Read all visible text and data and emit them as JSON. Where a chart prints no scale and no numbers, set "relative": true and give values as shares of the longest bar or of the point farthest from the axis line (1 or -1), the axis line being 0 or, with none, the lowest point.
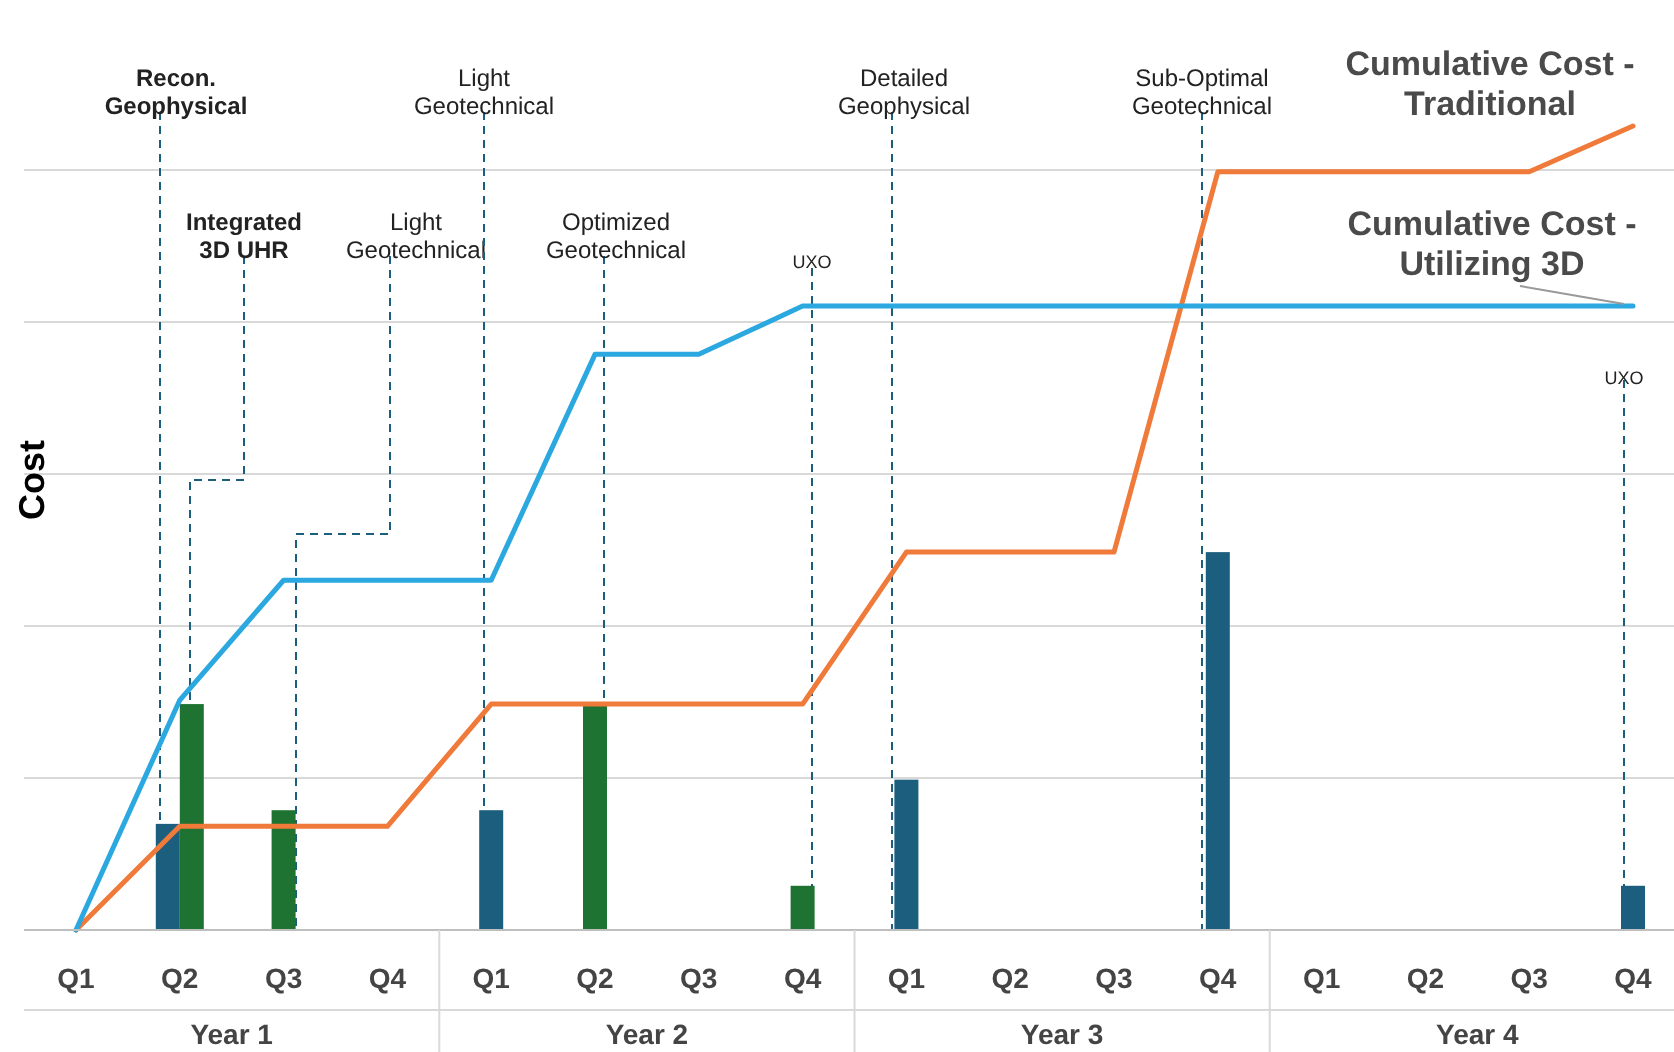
{
  "chart_data": {
    "type": "bar",
    "relative": true,
    "ylabel": "Cost",
    "grid": true,
    "categories": [
      "Q1",
      "Q2",
      "Q3",
      "Q4",
      "Q1",
      "Q2",
      "Q3",
      "Q4",
      "Q1",
      "Q2",
      "Q3",
      "Q4",
      "Q1",
      "Q2",
      "Q3",
      "Q4"
    ],
    "series": [
      {
        "type": "bar",
        "color": "#1b5e7e",
        "values": [
          null,
          0.132,
          null,
          null,
          0.149,
          null,
          null,
          null,
          0.187,
          null,
          null,
          0.47,
          null,
          null,
          null,
          0.055
        ]
      },
      {
        "type": "bar",
        "color": "#1e7332",
        "values": [
          null,
          0.281,
          0.149,
          null,
          null,
          0.281,
          null,
          0.055,
          null,
          null,
          null,
          null,
          null,
          null,
          null,
          null
        ]
      },
      {
        "type": "line",
        "name": "Cumulative Cost - Traditional",
        "color": "#f07a3a",
        "values": [
          0,
          0.129,
          0.129,
          0.129,
          0.281,
          0.281,
          0.281,
          0.281,
          0.47,
          0.47,
          0.47,
          0.943,
          0.943,
          0.943,
          0.943,
          1
        ]
      },
      {
        "type": "line",
        "name": "Cumulative Cost - Utilizing 3D",
        "color": "#2aa8df",
        "values": [
          0,
          0.286,
          0.435,
          0.435,
          0.435,
          0.716,
          0.716,
          0.776,
          0.776,
          0.776,
          0.776,
          0.776,
          0.776,
          0.776,
          0.776,
          0.776
        ]
      }
    ],
    "annotations": [
      "Recon.\nGeophysical",
      "Integrated\n3D UHR",
      "Light\nGeotechnical",
      "Light\nGeotechnical",
      "Optimized\nGeotechnical",
      "UXO",
      "Detailed\nGeophysical",
      "Sub-Optimal\nGeotechnical",
      "UXO",
      "Year 1",
      "Year 2",
      "Year 3",
      "Year 4"
    ]
  }
}
